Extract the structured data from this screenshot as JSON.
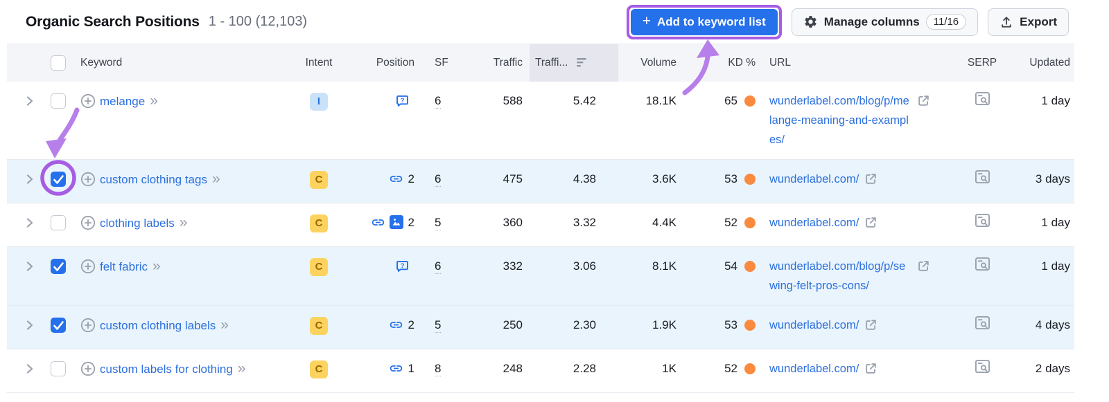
{
  "title_bar": {
    "title": "Organic Search Positions",
    "range_label": "1 - 100 (12,103)",
    "add_to_keyword_list_button": "Add to keyword list",
    "manage_columns_button": "Manage columns",
    "manage_columns_badge": "11/16",
    "export_button": "Export"
  },
  "table": {
    "headers": {
      "keyword": "Keyword",
      "intent": "Intent",
      "position": "Position",
      "sf": "SF",
      "traffic": "Traffic",
      "traffic_pct": "Traffi...",
      "volume": "Volume",
      "kd": "KD %",
      "url": "URL",
      "serp": "SERP",
      "updated": "Updated"
    },
    "sorted_column": "traffic_pct",
    "rows": [
      {
        "keyword": "melange",
        "checked": false,
        "selected": false,
        "intent": "I",
        "position_icons": [
          "question"
        ],
        "position": "",
        "sf": "6",
        "traffic": "588",
        "traffic_pct": "5.42",
        "volume": "18.1K",
        "kd": "65",
        "url": "wunderlabel.com/blog/p/melange-meaning-and-examples/",
        "updated": "1 day"
      },
      {
        "keyword": "custom clothing tags",
        "checked": true,
        "selected": true,
        "intent": "C",
        "position_icons": [
          "link"
        ],
        "position": "2",
        "sf": "6",
        "traffic": "475",
        "traffic_pct": "4.38",
        "volume": "3.6K",
        "kd": "53",
        "url": "wunderlabel.com/",
        "updated": "3 days"
      },
      {
        "keyword": "clothing labels",
        "checked": false,
        "selected": false,
        "intent": "C",
        "position_icons": [
          "link",
          "image"
        ],
        "position": "2",
        "sf": "5",
        "traffic": "360",
        "traffic_pct": "3.32",
        "volume": "4.4K",
        "kd": "52",
        "url": "wunderlabel.com/",
        "updated": "1 day"
      },
      {
        "keyword": "felt fabric",
        "checked": true,
        "selected": true,
        "intent": "C",
        "position_icons": [
          "question"
        ],
        "position": "",
        "sf": "6",
        "traffic": "332",
        "traffic_pct": "3.06",
        "volume": "8.1K",
        "kd": "54",
        "url": "wunderlabel.com/blog/p/sewing-felt-pros-cons/",
        "updated": "1 day"
      },
      {
        "keyword": "custom clothing labels",
        "checked": true,
        "selected": true,
        "intent": "C",
        "position_icons": [
          "link"
        ],
        "position": "2",
        "sf": "5",
        "traffic": "250",
        "traffic_pct": "2.30",
        "volume": "1.9K",
        "kd": "53",
        "url": "wunderlabel.com/",
        "updated": "4 days"
      },
      {
        "keyword": "custom labels for clothing",
        "checked": false,
        "selected": false,
        "intent": "C",
        "position_icons": [
          "link"
        ],
        "position": "1",
        "sf": "8",
        "traffic": "248",
        "traffic_pct": "2.28",
        "volume": "1K",
        "kd": "52",
        "url": "wunderlabel.com/",
        "updated": "2 days"
      }
    ]
  },
  "colors": {
    "accent_blue": "#2570eb",
    "link_blue": "#2c6fdd",
    "annotation_purple": "#b77fe9",
    "highlight_purple": "#a75ce4",
    "selected_row_bg": "#e9f4fc",
    "header_bg": "#f4f5f9",
    "sorted_header_bg": "#e6e7ee",
    "kd_dot_orange": "#fa8a3e",
    "intent_i_bg": "#c9e2f9",
    "intent_i_text": "#2272d9",
    "intent_c_bg": "#fbd35e",
    "intent_c_text": "#9a6702",
    "icon_gray": "#9aa1ad"
  }
}
